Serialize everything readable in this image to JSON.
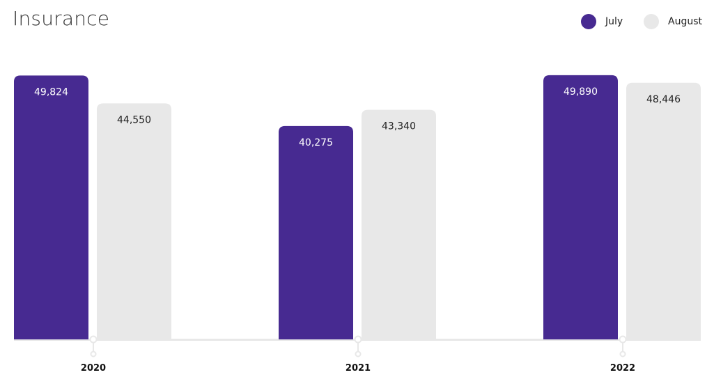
{
  "chart_data": {
    "type": "bar",
    "title": "Insurance",
    "categories": [
      "2020",
      "2021",
      "2022"
    ],
    "series": [
      {
        "name": "July",
        "color": "#472a91",
        "label_color": "#ffffff",
        "values": [
          49824,
          40275,
          49890
        ],
        "labels": [
          "49,824",
          "40,275",
          "49,890"
        ]
      },
      {
        "name": "August",
        "color": "#e8e8e8",
        "label_color": "#222222",
        "values": [
          44550,
          43340,
          48446
        ],
        "labels": [
          "44,550",
          "43,340",
          "48,446"
        ]
      }
    ],
    "ylim": [
      0,
      50000
    ],
    "grid": false,
    "legend_position": "top-right",
    "axis_color": "#e8e8e8"
  }
}
